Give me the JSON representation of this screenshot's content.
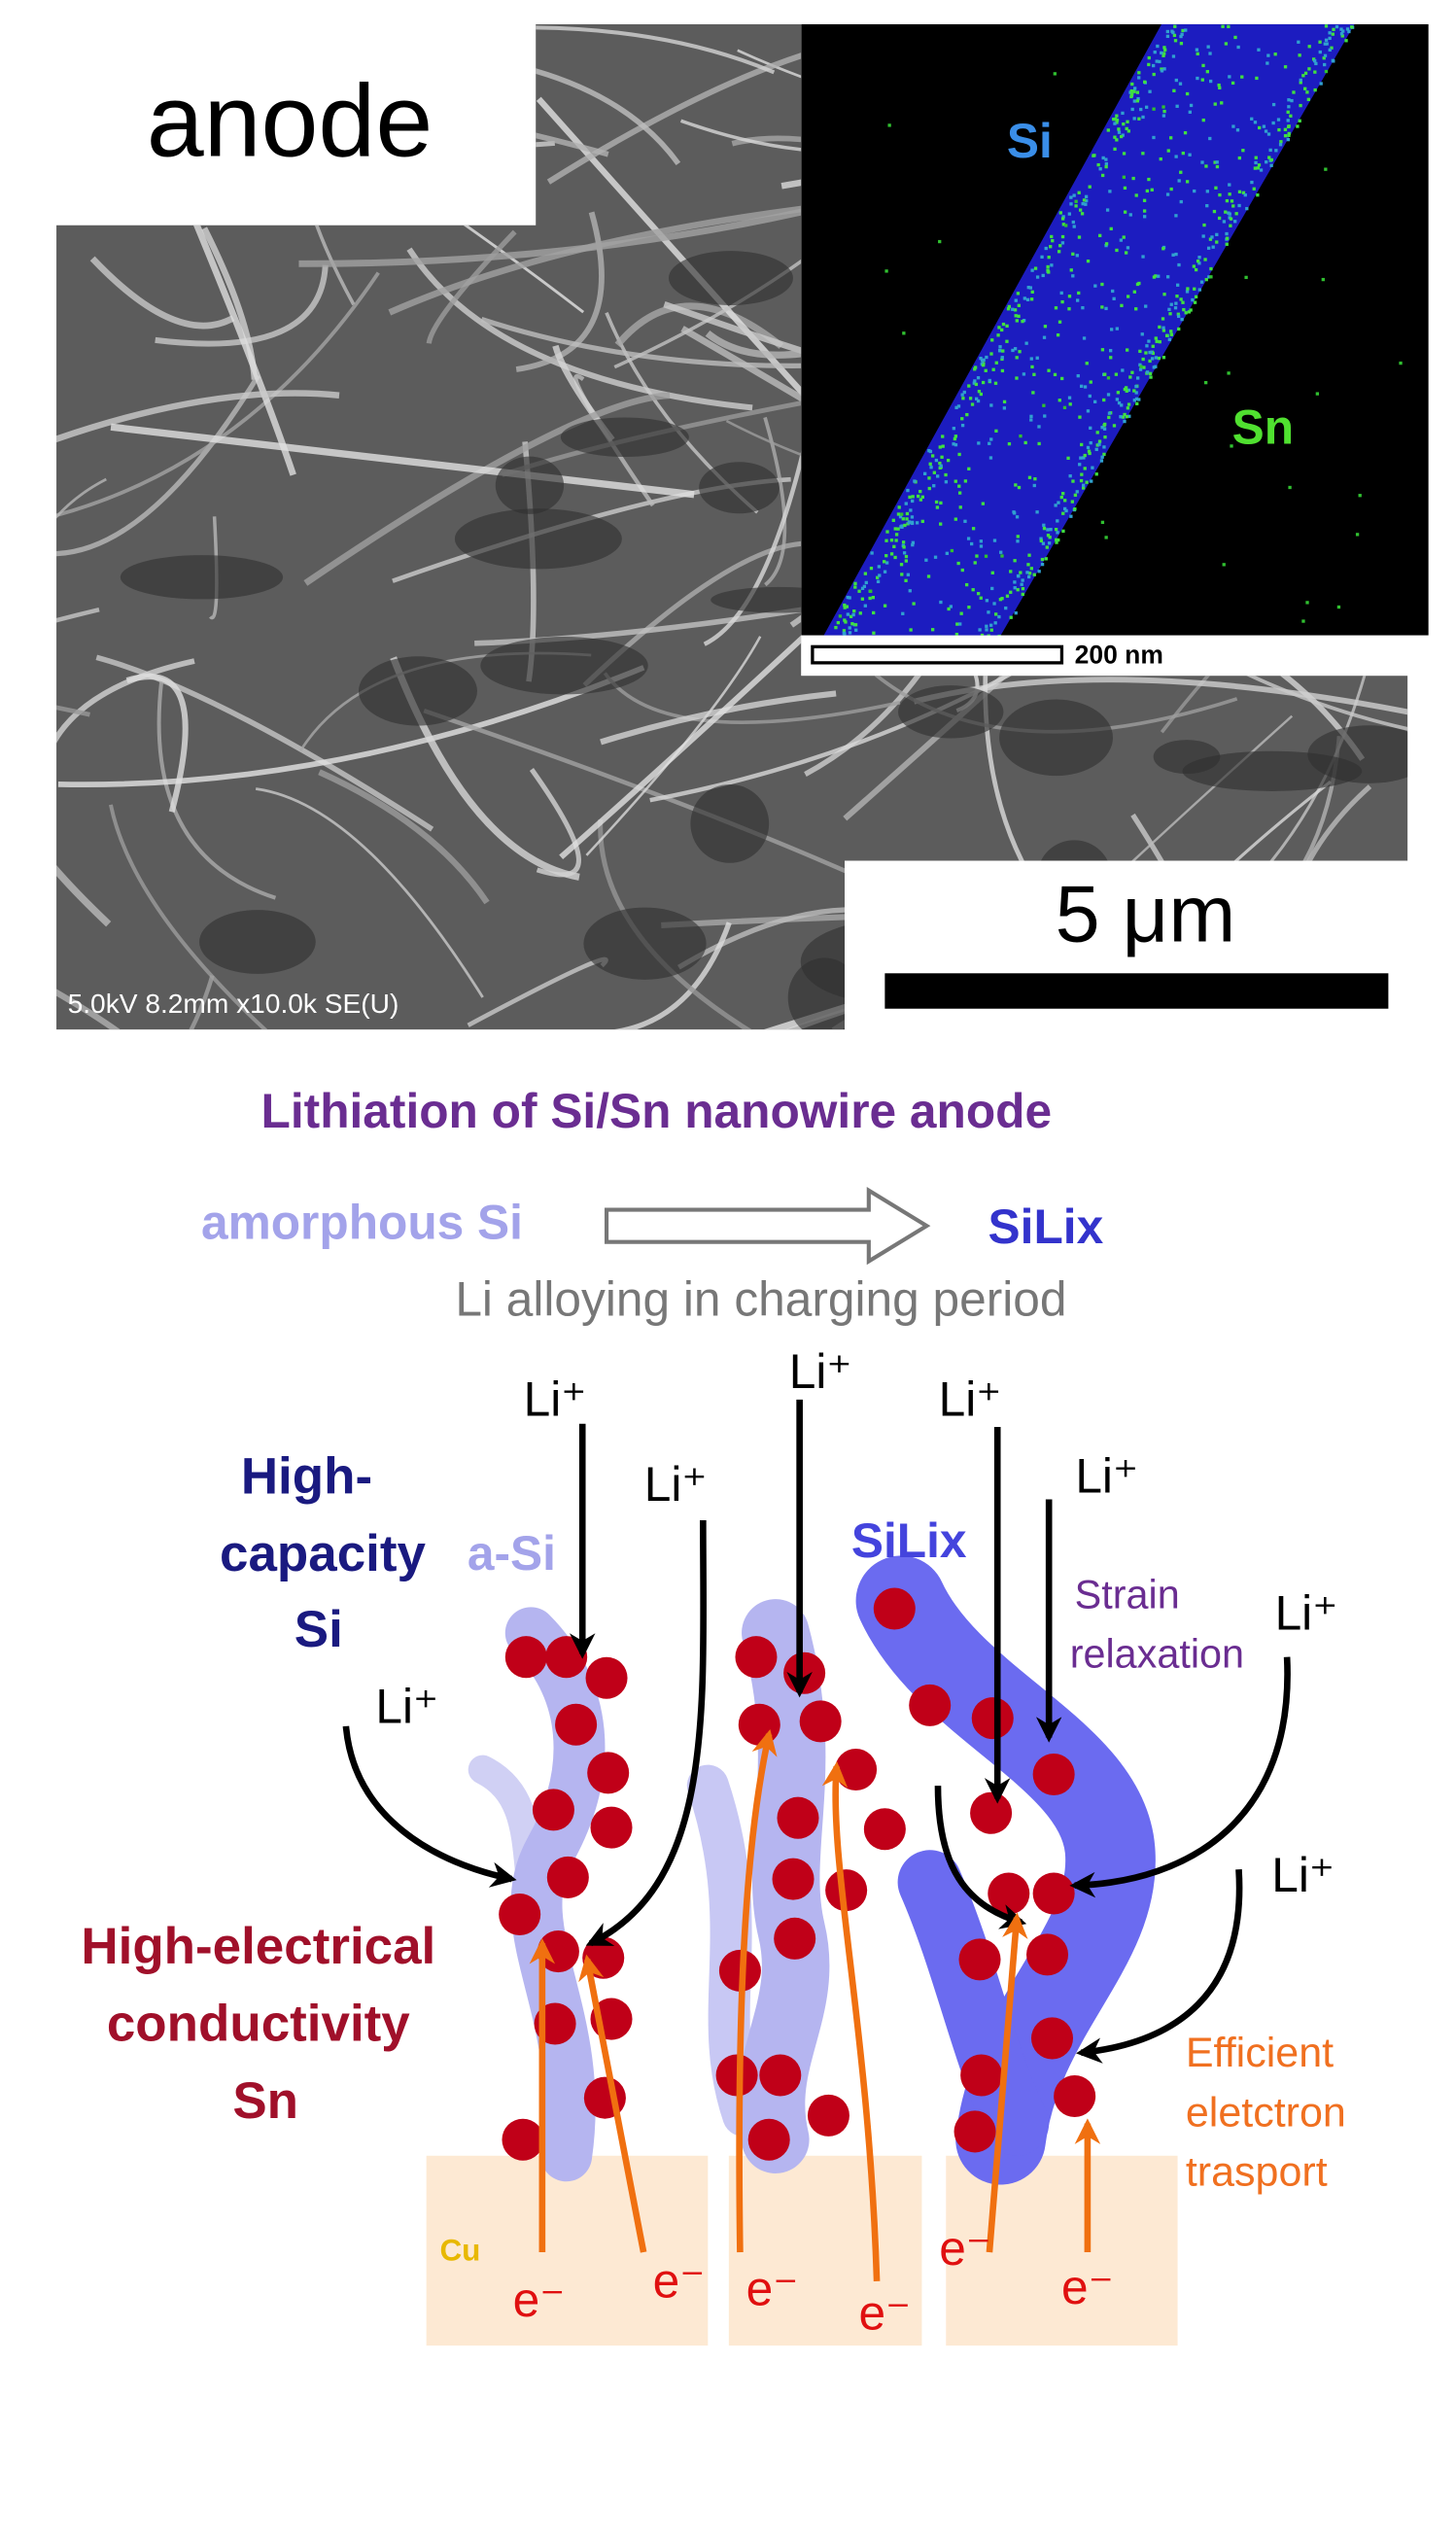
{
  "panel_a": {
    "label": "anode",
    "sem_caption": "5.0kV 8.2mm x10.0k SE(U)",
    "scale_bar": "5 μm",
    "eds": {
      "si_label": "Si",
      "sn_label": "Sn",
      "scale_bar": "200 nm"
    }
  },
  "diagram": {
    "title": "Lithiation of Si/Sn nanowire anode",
    "transition": {
      "from": "amorphous Si",
      "to": "SiLix",
      "note": "Li alloying in charging period"
    },
    "si_label": {
      "lines": [
        "High-",
        "capacity",
        "Si"
      ]
    },
    "a_si_label": "a-Si",
    "silix_label": "SiLix",
    "strain_label": {
      "lines": [
        "Strain",
        "relaxation"
      ]
    },
    "sn_label": {
      "lines": [
        "High-electrical",
        "conductivity",
        "Sn"
      ]
    },
    "transport_label": {
      "lines": [
        "Efficient",
        "eletctron",
        "trasport"
      ]
    },
    "substrate": "Cu",
    "li_labels": [
      "Li⁺",
      "Li⁺",
      "Li⁺",
      "Li⁺",
      "Li⁺",
      "Li⁺",
      "Li⁺",
      "Li⁺"
    ],
    "electron_labels": [
      "e⁻",
      "e⁻",
      "e⁻",
      "e⁻",
      "e⁻",
      "e⁻"
    ]
  }
}
